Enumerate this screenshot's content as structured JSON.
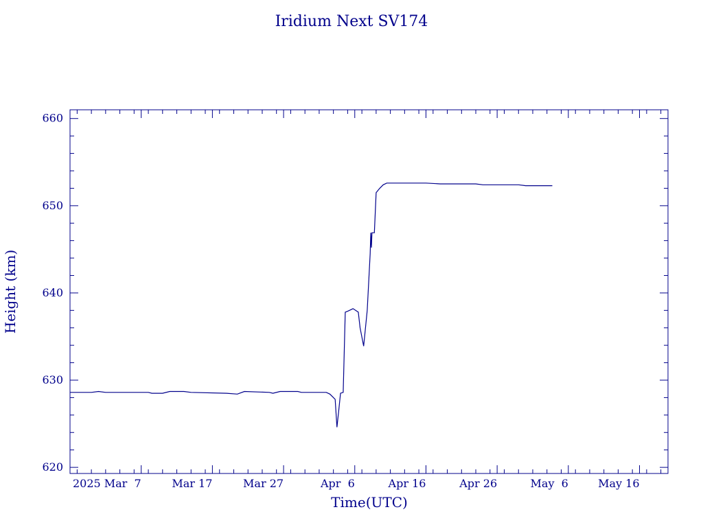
{
  "chart_data": {
    "type": "line",
    "title": "Iridium Next SV174",
    "xlabel": "Time(UTC)",
    "ylabel": "Height (km)",
    "color": "#00008b",
    "xlim": [
      "2025-02-25",
      "2025-05-20"
    ],
    "ylim": [
      619.3,
      661.0
    ],
    "grid": false,
    "x_ticks": [
      {
        "date": "2025-03-07",
        "label": "2025 Mar  7"
      },
      {
        "date": "2025-03-17",
        "label": "Mar 17"
      },
      {
        "date": "2025-03-27",
        "label": "Mar 27"
      },
      {
        "date": "2025-04-06",
        "label": "Apr  6"
      },
      {
        "date": "2025-04-16",
        "label": "Apr 16"
      },
      {
        "date": "2025-04-26",
        "label": "Apr 26"
      },
      {
        "date": "2025-05-06",
        "label": "May  6"
      },
      {
        "date": "2025-05-16",
        "label": "May 16"
      }
    ],
    "y_ticks": [
      620,
      630,
      640,
      650,
      660
    ],
    "series": [
      {
        "points": [
          [
            "2025-02-25T00:00",
            628.6
          ],
          [
            "2025-02-28T00:00",
            628.6
          ],
          [
            "2025-03-01T00:00",
            628.7
          ],
          [
            "2025-03-02T00:00",
            628.6
          ],
          [
            "2025-03-08T00:00",
            628.6
          ],
          [
            "2025-03-08T12:00",
            628.5
          ],
          [
            "2025-03-10T00:00",
            628.5
          ],
          [
            "2025-03-11T00:00",
            628.7
          ],
          [
            "2025-03-13T00:00",
            628.7
          ],
          [
            "2025-03-14T00:00",
            628.6
          ],
          [
            "2025-03-19T00:00",
            628.5
          ],
          [
            "2025-03-20T12:00",
            628.4
          ],
          [
            "2025-03-21T12:00",
            628.7
          ],
          [
            "2025-03-25T00:00",
            628.6
          ],
          [
            "2025-03-25T12:00",
            628.5
          ],
          [
            "2025-03-26T12:00",
            628.7
          ],
          [
            "2025-03-29T00:00",
            628.7
          ],
          [
            "2025-03-29T12:00",
            628.6
          ],
          [
            "2025-04-02T00:00",
            628.6
          ],
          [
            "2025-04-02T12:00",
            628.4
          ],
          [
            "2025-04-03T00:00",
            628.0
          ],
          [
            "2025-04-03T06:00",
            627.8
          ],
          [
            "2025-04-03T12:00",
            624.6
          ],
          [
            "2025-04-03T18:00",
            626.5
          ],
          [
            "2025-04-04T00:00",
            628.5
          ],
          [
            "2025-04-04T09:00",
            628.6
          ],
          [
            "2025-04-04T16:00",
            637.8
          ],
          [
            "2025-04-05T00:00",
            637.9
          ],
          [
            "2025-04-05T12:00",
            638.1
          ],
          [
            "2025-04-05T18:00",
            638.2
          ],
          [
            "2025-04-06T12:00",
            637.8
          ],
          [
            "2025-04-06T18:00",
            636.0
          ],
          [
            "2025-04-07T06:00",
            633.9
          ],
          [
            "2025-04-07T18:00",
            638.0
          ],
          [
            "2025-04-08T04:00",
            644.5
          ],
          [
            "2025-04-08T06:00",
            646.9
          ],
          [
            "2025-04-08T08:00",
            645.2
          ],
          [
            "2025-04-08T10:00",
            646.9
          ],
          [
            "2025-04-08T18:00",
            646.9
          ],
          [
            "2025-04-09T00:00",
            651.5
          ],
          [
            "2025-04-09T12:00",
            652.0
          ],
          [
            "2025-04-10T00:00",
            652.4
          ],
          [
            "2025-04-10T12:00",
            652.6
          ],
          [
            "2025-04-12T00:00",
            652.6
          ],
          [
            "2025-04-16T00:00",
            652.6
          ],
          [
            "2025-04-18T00:00",
            652.5
          ],
          [
            "2025-04-23T00:00",
            652.5
          ],
          [
            "2025-04-24T00:00",
            652.4
          ],
          [
            "2025-04-29T00:00",
            652.4
          ],
          [
            "2025-04-30T00:00",
            652.3
          ],
          [
            "2025-05-03T18:00",
            652.3
          ]
        ]
      }
    ]
  }
}
